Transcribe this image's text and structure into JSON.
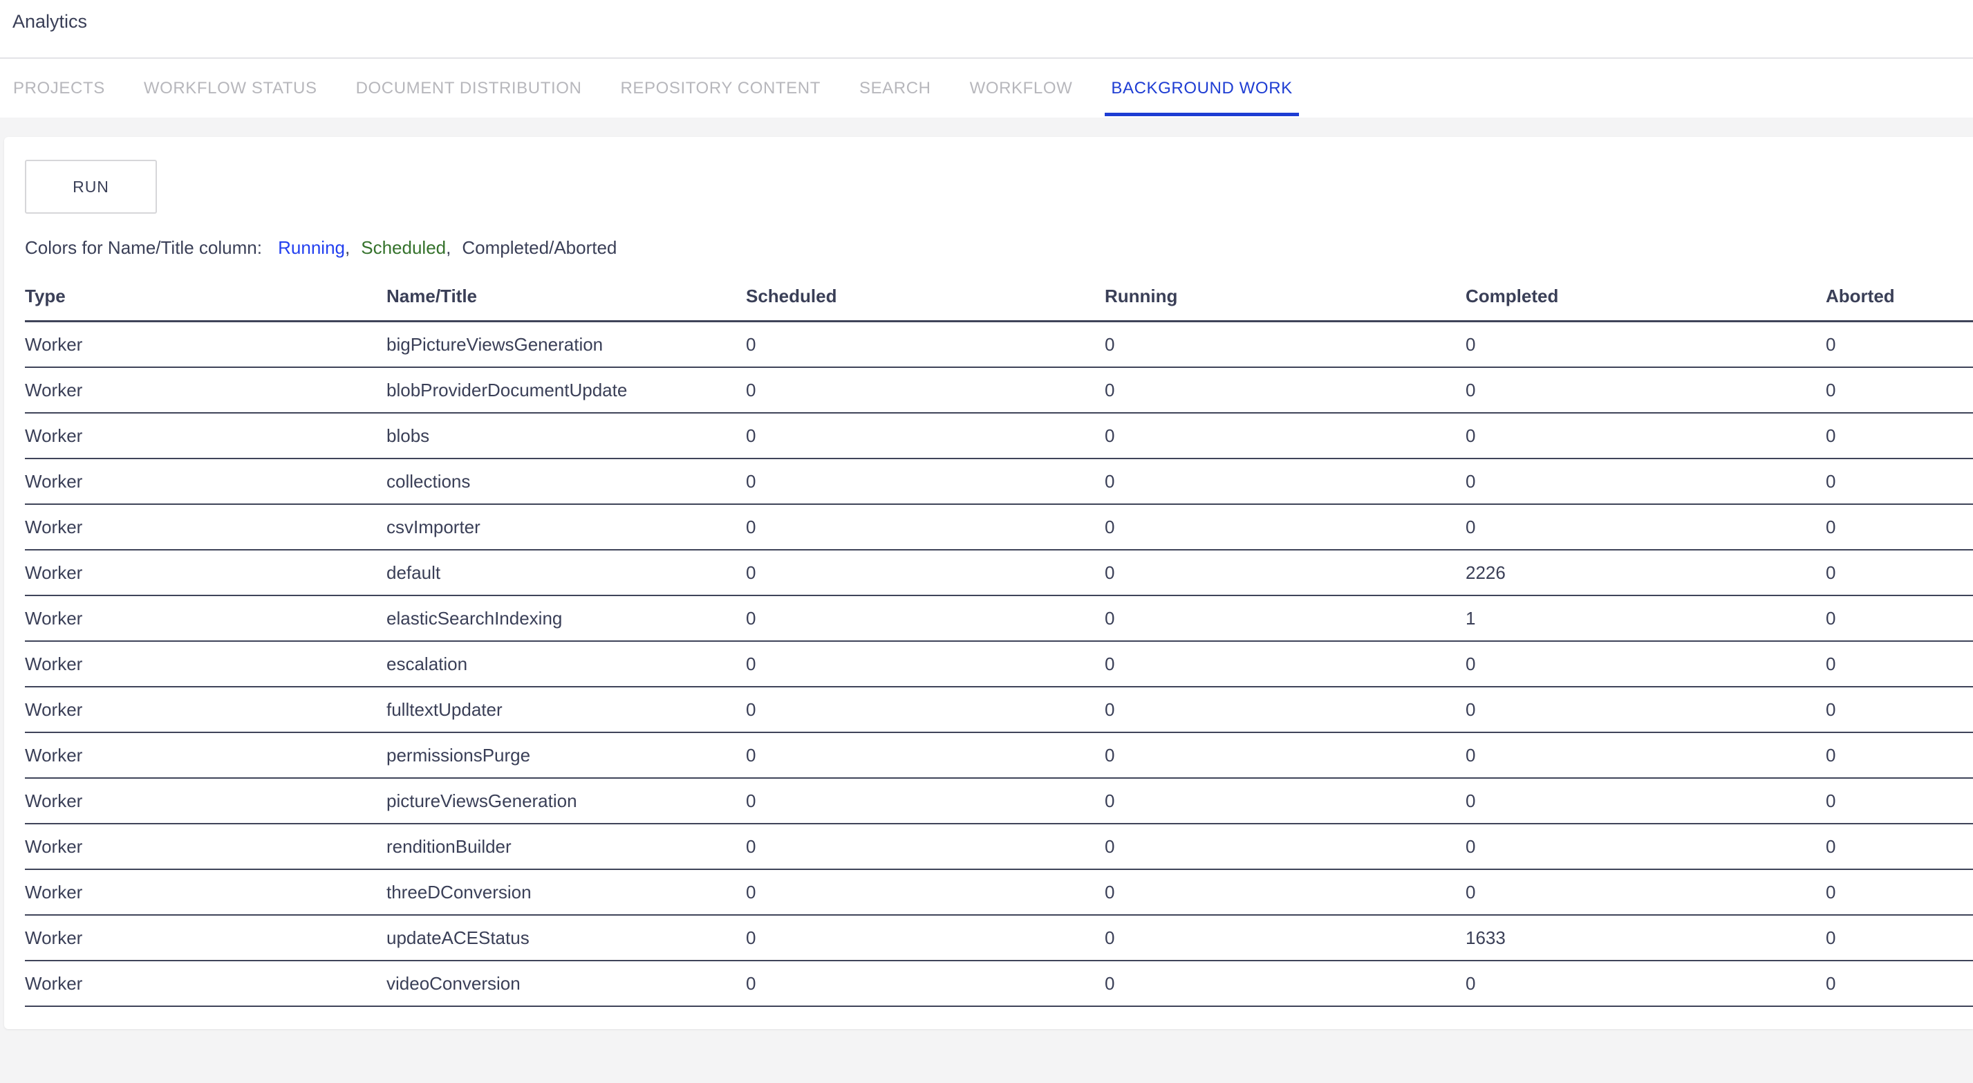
{
  "header": {
    "title": "Analytics"
  },
  "tabs": [
    {
      "label": "PROJECTS",
      "active": false
    },
    {
      "label": "WORKFLOW STATUS",
      "active": false
    },
    {
      "label": "DOCUMENT DISTRIBUTION",
      "active": false
    },
    {
      "label": "REPOSITORY CONTENT",
      "active": false
    },
    {
      "label": "SEARCH",
      "active": false
    },
    {
      "label": "WORKFLOW",
      "active": false
    },
    {
      "label": "BACKGROUND WORK",
      "active": true
    }
  ],
  "panel": {
    "run_label": "RUN",
    "legend": {
      "prefix": "Colors for Name/Title column: ",
      "separator": ",",
      "items": [
        {
          "label": "Running",
          "color": "#2340f0"
        },
        {
          "label": "Scheduled",
          "color": "#35722c"
        },
        {
          "label": "Completed/Aborted",
          "color": "#3a3f57"
        }
      ]
    }
  },
  "table": {
    "columns": [
      "Type",
      "Name/Title",
      "Scheduled",
      "Running",
      "Completed",
      "Aborted"
    ],
    "rows": [
      [
        "Worker",
        "bigPictureViewsGeneration",
        "0",
        "0",
        "0",
        "0"
      ],
      [
        "Worker",
        "blobProviderDocumentUpdate",
        "0",
        "0",
        "0",
        "0"
      ],
      [
        "Worker",
        "blobs",
        "0",
        "0",
        "0",
        "0"
      ],
      [
        "Worker",
        "collections",
        "0",
        "0",
        "0",
        "0"
      ],
      [
        "Worker",
        "csvImporter",
        "0",
        "0",
        "0",
        "0"
      ],
      [
        "Worker",
        "default",
        "0",
        "0",
        "2226",
        "0"
      ],
      [
        "Worker",
        "elasticSearchIndexing",
        "0",
        "0",
        "1",
        "0"
      ],
      [
        "Worker",
        "escalation",
        "0",
        "0",
        "0",
        "0"
      ],
      [
        "Worker",
        "fulltextUpdater",
        "0",
        "0",
        "0",
        "0"
      ],
      [
        "Worker",
        "permissionsPurge",
        "0",
        "0",
        "0",
        "0"
      ],
      [
        "Worker",
        "pictureViewsGeneration",
        "0",
        "0",
        "0",
        "0"
      ],
      [
        "Worker",
        "renditionBuilder",
        "0",
        "0",
        "0",
        "0"
      ],
      [
        "Worker",
        "threeDConversion",
        "0",
        "0",
        "0",
        "0"
      ],
      [
        "Worker",
        "updateACEStatus",
        "0",
        "0",
        "1633",
        "0"
      ],
      [
        "Worker",
        "videoConversion",
        "0",
        "0",
        "0",
        "0"
      ]
    ]
  },
  "colors": {
    "accent_blue": "#1e3dd3",
    "running_blue": "#2340f0",
    "scheduled_green": "#35722c",
    "ink": "#3a3f57",
    "page_bg": "#f4f4f5"
  }
}
